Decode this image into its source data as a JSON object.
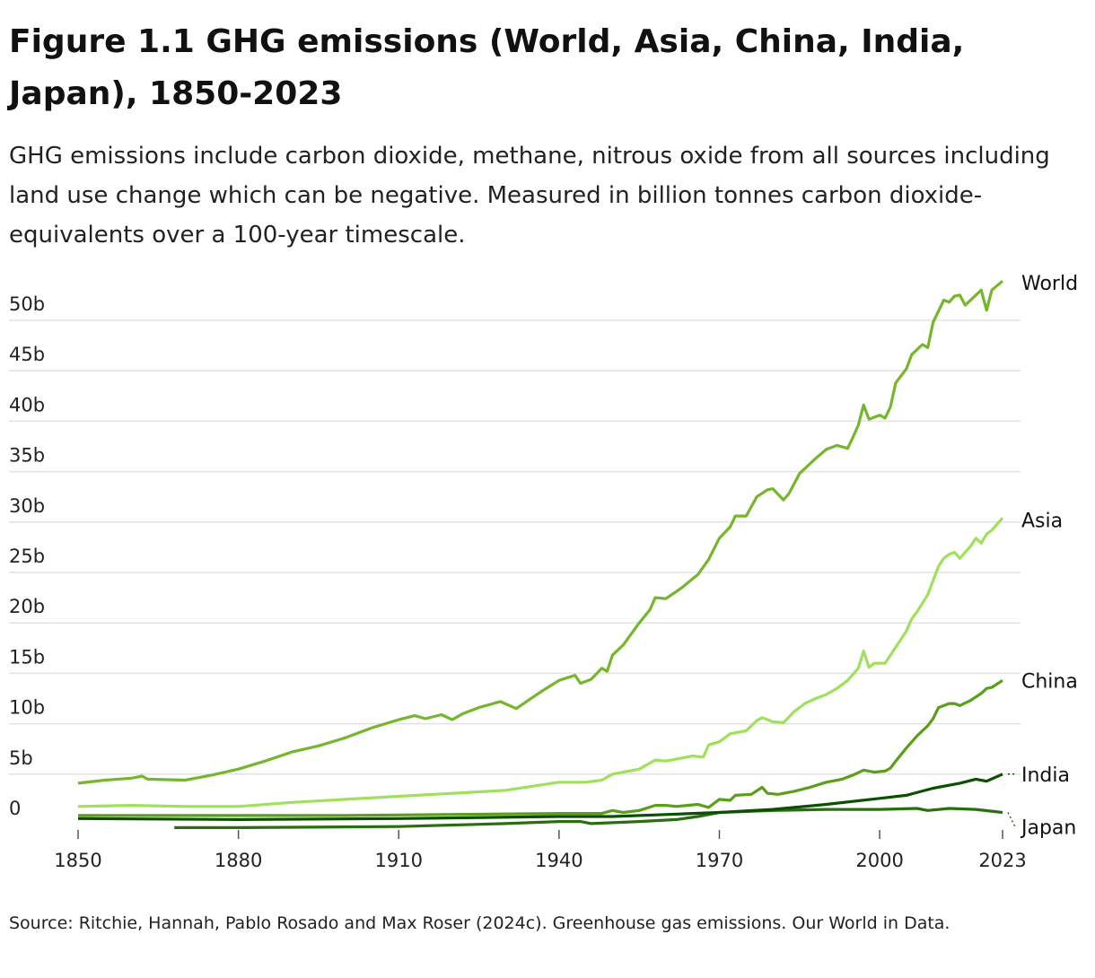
{
  "title": "Figure 1.1 GHG emissions (World, Asia, China, India, Japan), 1850-2023",
  "subtitle": "GHG emissions include carbon dioxide, methane, nitrous oxide from all sources including land use change which can be negative. Measured in billion tonnes carbon dioxide-equivalents over a 100-year timescale.",
  "source": "Source: Ritchie, Hannah, Pablo Rosado and Max Roser (2024c). Greenhouse gas emissions. Our World in Data.",
  "chart_data": {
    "type": "line",
    "title": "Figure 1.1 GHG emissions (World, Asia, China, India, Japan), 1850-2023",
    "xlim": [
      1850,
      2023
    ],
    "ylim": [
      0,
      55
    ],
    "x_ticks": [
      "1850",
      "1880",
      "1910",
      "1940",
      "1970",
      "2000",
      "2023"
    ],
    "y_ticks": [
      "0",
      "5b",
      "10b",
      "15b",
      "20b",
      "25b",
      "30b",
      "35b",
      "40b",
      "45b",
      "50b"
    ],
    "y_tick_values": [
      0,
      5,
      10,
      15,
      20,
      25,
      30,
      35,
      40,
      45,
      50
    ],
    "grid": "horizontal",
    "legend": "end-of-line labels",
    "series": [
      {
        "name": "World",
        "color": "#76b62c",
        "points": [
          [
            1850,
            4.1
          ],
          [
            1855,
            4.4
          ],
          [
            1860,
            4.6
          ],
          [
            1862,
            4.8
          ],
          [
            1863,
            4.5
          ],
          [
            1870,
            4.4
          ],
          [
            1875,
            4.9
          ],
          [
            1880,
            5.5
          ],
          [
            1885,
            6.3
          ],
          [
            1890,
            7.2
          ],
          [
            1895,
            7.8
          ],
          [
            1900,
            8.6
          ],
          [
            1905,
            9.6
          ],
          [
            1910,
            10.4
          ],
          [
            1913,
            10.8
          ],
          [
            1915,
            10.5
          ],
          [
            1918,
            10.9
          ],
          [
            1920,
            10.4
          ],
          [
            1922,
            11.0
          ],
          [
            1925,
            11.6
          ],
          [
            1929,
            12.2
          ],
          [
            1932,
            11.5
          ],
          [
            1935,
            12.6
          ],
          [
            1937,
            13.3
          ],
          [
            1940,
            14.3
          ],
          [
            1943,
            14.8
          ],
          [
            1944,
            14.0
          ],
          [
            1946,
            14.4
          ],
          [
            1948,
            15.5
          ],
          [
            1949,
            15.2
          ],
          [
            1950,
            16.8
          ],
          [
            1952,
            17.8
          ],
          [
            1955,
            20.0
          ],
          [
            1957,
            21.3
          ],
          [
            1958,
            22.5
          ],
          [
            1960,
            22.4
          ],
          [
            1963,
            23.5
          ],
          [
            1966,
            24.8
          ],
          [
            1968,
            26.3
          ],
          [
            1970,
            28.4
          ],
          [
            1972,
            29.5
          ],
          [
            1973,
            30.6
          ],
          [
            1975,
            30.6
          ],
          [
            1977,
            32.5
          ],
          [
            1979,
            33.2
          ],
          [
            1980,
            33.3
          ],
          [
            1982,
            32.2
          ],
          [
            1983,
            32.8
          ],
          [
            1985,
            34.8
          ],
          [
            1988,
            36.3
          ],
          [
            1990,
            37.2
          ],
          [
            1992,
            37.6
          ],
          [
            1994,
            37.3
          ],
          [
            1995,
            38.4
          ],
          [
            1996,
            39.6
          ],
          [
            1997,
            41.6
          ],
          [
            1998,
            40.2
          ],
          [
            2000,
            40.6
          ],
          [
            2001,
            40.3
          ],
          [
            2002,
            41.4
          ],
          [
            2003,
            43.8
          ],
          [
            2005,
            45.2
          ],
          [
            2006,
            46.6
          ],
          [
            2008,
            47.6
          ],
          [
            2009,
            47.3
          ],
          [
            2010,
            49.8
          ],
          [
            2012,
            52.0
          ],
          [
            2013,
            51.8
          ],
          [
            2014,
            52.4
          ],
          [
            2015,
            52.5
          ],
          [
            2016,
            51.5
          ],
          [
            2018,
            52.5
          ],
          [
            2019,
            53.0
          ],
          [
            2020,
            51.0
          ],
          [
            2021,
            53.0
          ],
          [
            2023,
            53.9
          ]
        ]
      },
      {
        "name": "Asia",
        "color": "#9fe05c",
        "points": [
          [
            1850,
            1.8
          ],
          [
            1860,
            1.9
          ],
          [
            1870,
            1.8
          ],
          [
            1880,
            1.8
          ],
          [
            1890,
            2.2
          ],
          [
            1900,
            2.5
          ],
          [
            1910,
            2.8
          ],
          [
            1920,
            3.1
          ],
          [
            1930,
            3.4
          ],
          [
            1940,
            4.2
          ],
          [
            1945,
            4.2
          ],
          [
            1948,
            4.4
          ],
          [
            1950,
            5.0
          ],
          [
            1955,
            5.5
          ],
          [
            1958,
            6.4
          ],
          [
            1960,
            6.3
          ],
          [
            1965,
            6.8
          ],
          [
            1967,
            6.7
          ],
          [
            1968,
            7.9
          ],
          [
            1970,
            8.2
          ],
          [
            1972,
            9.0
          ],
          [
            1975,
            9.3
          ],
          [
            1977,
            10.3
          ],
          [
            1978,
            10.6
          ],
          [
            1980,
            10.2
          ],
          [
            1982,
            10.1
          ],
          [
            1984,
            11.2
          ],
          [
            1986,
            12.0
          ],
          [
            1988,
            12.5
          ],
          [
            1990,
            12.9
          ],
          [
            1992,
            13.5
          ],
          [
            1994,
            14.3
          ],
          [
            1996,
            15.5
          ],
          [
            1997,
            17.2
          ],
          [
            1998,
            15.6
          ],
          [
            1999,
            16.0
          ],
          [
            2001,
            16.0
          ],
          [
            2003,
            17.6
          ],
          [
            2005,
            19.2
          ],
          [
            2006,
            20.4
          ],
          [
            2007,
            21.1
          ],
          [
            2009,
            22.8
          ],
          [
            2011,
            25.6
          ],
          [
            2012,
            26.4
          ],
          [
            2013,
            26.8
          ],
          [
            2014,
            27.0
          ],
          [
            2015,
            26.4
          ],
          [
            2017,
            27.6
          ],
          [
            2018,
            28.4
          ],
          [
            2019,
            27.9
          ],
          [
            2020,
            28.8
          ],
          [
            2021,
            29.2
          ],
          [
            2023,
            30.4
          ]
        ]
      },
      {
        "name": "China",
        "color": "#5a9e1a",
        "points": [
          [
            1850,
            0.9
          ],
          [
            1900,
            0.9
          ],
          [
            1940,
            1.1
          ],
          [
            1948,
            1.1
          ],
          [
            1950,
            1.4
          ],
          [
            1952,
            1.2
          ],
          [
            1955,
            1.4
          ],
          [
            1958,
            1.9
          ],
          [
            1960,
            1.9
          ],
          [
            1962,
            1.8
          ],
          [
            1964,
            1.9
          ],
          [
            1966,
            2.0
          ],
          [
            1968,
            1.7
          ],
          [
            1970,
            2.5
          ],
          [
            1972,
            2.4
          ],
          [
            1973,
            2.9
          ],
          [
            1976,
            3.0
          ],
          [
            1978,
            3.7
          ],
          [
            1979,
            3.1
          ],
          [
            1981,
            3.0
          ],
          [
            1984,
            3.3
          ],
          [
            1987,
            3.7
          ],
          [
            1990,
            4.2
          ],
          [
            1993,
            4.5
          ],
          [
            1995,
            4.9
          ],
          [
            1997,
            5.4
          ],
          [
            1999,
            5.2
          ],
          [
            2001,
            5.3
          ],
          [
            2002,
            5.6
          ],
          [
            2003,
            6.3
          ],
          [
            2005,
            7.6
          ],
          [
            2007,
            8.8
          ],
          [
            2009,
            9.8
          ],
          [
            2010,
            10.5
          ],
          [
            2011,
            11.6
          ],
          [
            2013,
            12.0
          ],
          [
            2014,
            12.0
          ],
          [
            2015,
            11.8
          ],
          [
            2017,
            12.3
          ],
          [
            2019,
            13.0
          ],
          [
            2020,
            13.5
          ],
          [
            2021,
            13.6
          ],
          [
            2023,
            14.3
          ]
        ]
      },
      {
        "name": "India",
        "color": "#0b4f00",
        "points": [
          [
            1850,
            0.6
          ],
          [
            1880,
            0.5
          ],
          [
            1910,
            0.6
          ],
          [
            1940,
            0.8
          ],
          [
            1950,
            0.8
          ],
          [
            1960,
            1.0
          ],
          [
            1970,
            1.2
          ],
          [
            1980,
            1.5
          ],
          [
            1990,
            2.0
          ],
          [
            2000,
            2.6
          ],
          [
            2005,
            2.9
          ],
          [
            2010,
            3.6
          ],
          [
            2015,
            4.1
          ],
          [
            2018,
            4.5
          ],
          [
            2020,
            4.3
          ],
          [
            2023,
            5.0
          ]
        ]
      },
      {
        "name": "Japan",
        "color": "#2b6e12",
        "points": [
          [
            1868,
            -0.3
          ],
          [
            1880,
            -0.3
          ],
          [
            1910,
            -0.2
          ],
          [
            1930,
            0.1
          ],
          [
            1940,
            0.3
          ],
          [
            1944,
            0.3
          ],
          [
            1946,
            0.1
          ],
          [
            1955,
            0.3
          ],
          [
            1962,
            0.5
          ],
          [
            1966,
            0.8
          ],
          [
            1970,
            1.2
          ],
          [
            1975,
            1.3
          ],
          [
            1980,
            1.4
          ],
          [
            1990,
            1.5
          ],
          [
            2000,
            1.5
          ],
          [
            2007,
            1.6
          ],
          [
            2009,
            1.4
          ],
          [
            2013,
            1.6
          ],
          [
            2018,
            1.5
          ],
          [
            2023,
            1.2
          ]
        ]
      }
    ]
  }
}
